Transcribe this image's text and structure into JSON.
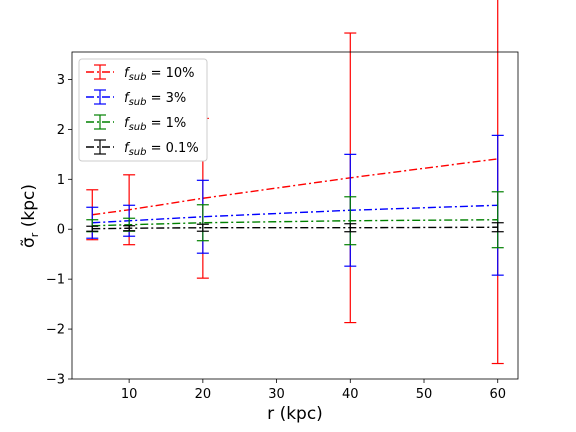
{
  "chart_data": {
    "type": "line",
    "xlabel": "r (kpc)",
    "ylabel": "σ̃",
    "ylabel_sub": "r",
    "ylabel_unit": " (kpc)",
    "xlim": [
      2.25,
      62.75
    ],
    "ylim": [
      -3,
      3.55
    ],
    "xticks": [
      10,
      20,
      30,
      40,
      50,
      60
    ],
    "yticks": [
      -3,
      -2,
      -1,
      0,
      1,
      2,
      3
    ],
    "x": [
      5,
      10,
      20,
      40,
      60
    ],
    "legend_position": "top-left",
    "series": [
      {
        "name": "f_sub = 10%",
        "label_f": "f",
        "label_sub": "sub",
        "label_rest": " = 10%",
        "color": "#ff0000",
        "dash": "8,3,2,3",
        "values": [
          0.29,
          0.39,
          0.62,
          1.03,
          1.41
        ],
        "errors": [
          0.5,
          0.7,
          1.6,
          2.9,
          4.1
        ]
      },
      {
        "name": "f_sub = 3%",
        "label_f": "f",
        "label_sub": "sub",
        "label_rest": " = 3%",
        "color": "#0000ff",
        "dash": "8,3,2,3",
        "values": [
          0.13,
          0.17,
          0.25,
          0.38,
          0.48
        ],
        "errors": [
          0.31,
          0.31,
          0.73,
          1.12,
          1.4
        ]
      },
      {
        "name": "f_sub = 1%",
        "label_f": "f",
        "label_sub": "sub",
        "label_rest": " = 1%",
        "color": "#008000",
        "dash": "8,3,2,3",
        "values": [
          0.07,
          0.09,
          0.13,
          0.17,
          0.19
        ],
        "errors": [
          0.12,
          0.13,
          0.36,
          0.48,
          0.56
        ]
      },
      {
        "name": "f_sub = 0.1%",
        "label_f": "f",
        "label_sub": "sub",
        "label_rest": " = 0.1%",
        "color": "#000000",
        "dash": "8,3,2,3",
        "values": [
          0.01,
          0.02,
          0.03,
          0.03,
          0.04
        ],
        "errors": [
          0.05,
          0.05,
          0.07,
          0.08,
          0.09
        ]
      }
    ]
  }
}
